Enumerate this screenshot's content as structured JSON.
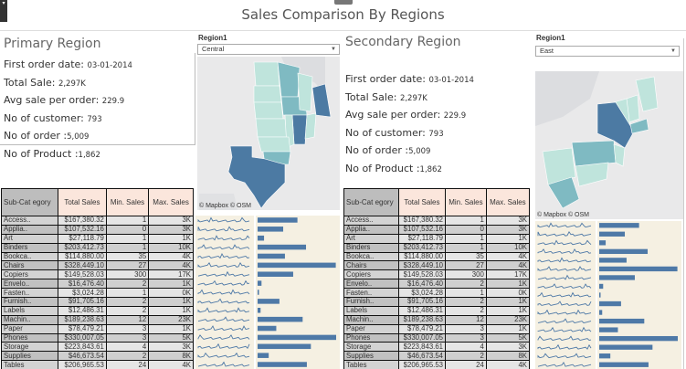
{
  "dashboard": {
    "title": "Sales Comparison By Regions",
    "collapse_glyph": "▾"
  },
  "primary": {
    "heading": "Primary Region",
    "filter_label": "Region1",
    "filter_value": "Central",
    "stats": [
      {
        "label": "First order date: ",
        "value": "03-01-2014"
      },
      {
        "label": "Total Sale: ",
        "value": "2,297K"
      },
      {
        "label": "Avg sale per order: ",
        "value": "229.9"
      },
      {
        "label": "No of customer: ",
        "value": "793"
      },
      {
        "label": "No of order :",
        "value": "5,009"
      },
      {
        "label": "No of Product :",
        "value": "1,862"
      }
    ],
    "map_attribution": "© Mapbox © OSM"
  },
  "secondary": {
    "heading": "Secondary Region",
    "filter_label": "Region1",
    "filter_value": "East",
    "stats": [
      {
        "label": "First order date: ",
        "value": "03-01-2014"
      },
      {
        "label": "Total Sale: ",
        "value": "2,297K"
      },
      {
        "label": "Avg sale per order: ",
        "value": "229.9"
      },
      {
        "label": "No of customer: ",
        "value": "793"
      },
      {
        "label": "No of order :",
        "value": "5,009"
      },
      {
        "label": "No of Product :",
        "value": "1,862"
      }
    ],
    "map_attribution": "© Mapbox © OSM"
  },
  "table": {
    "headers": [
      "Sub-Cat egory",
      "Total Sales",
      "Min. Sales",
      "Max. Sales"
    ],
    "rows": [
      [
        "Access..",
        "$167,380.32",
        "1",
        "3K"
      ],
      [
        "Applia..",
        "$107,532.16",
        "0",
        "3K"
      ],
      [
        "Art",
        "$27,118.79",
        "1",
        "1K"
      ],
      [
        "Binders",
        "$203,412.73",
        "1",
        "10K"
      ],
      [
        "Bookca..",
        "$114,880.00",
        "35",
        "4K"
      ],
      [
        "Chairs",
        "$328,449.10",
        "27",
        "4K"
      ],
      [
        "Copiers",
        "$149,528.03",
        "300",
        "17K"
      ],
      [
        "Envelo..",
        "$16,476.40",
        "2",
        "1K"
      ],
      [
        "Fasten..",
        "$3,024.28",
        "1",
        "0K"
      ],
      [
        "Furnish..",
        "$91,705.16",
        "2",
        "1K"
      ],
      [
        "Labels",
        "$12,486.31",
        "2",
        "1K"
      ],
      [
        "Machin..",
        "$189,238.63",
        "12",
        "23K"
      ],
      [
        "Paper",
        "$78,479.21",
        "3",
        "1K"
      ],
      [
        "Phones",
        "$330,007.05",
        "3",
        "5K"
      ],
      [
        "Storage",
        "$223,843.61",
        "4",
        "3K"
      ],
      [
        "Supplies",
        "$46,673.54",
        "2",
        "8K"
      ],
      [
        "Tables",
        "$206,965.53",
        "24",
        "4K"
      ]
    ],
    "sales_bar_values": [
      167380,
      107532,
      27119,
      203413,
      114880,
      328449,
      149528,
      16476,
      3024,
      91705,
      12486,
      189239,
      78479,
      330007,
      223844,
      46674,
      206966
    ]
  },
  "colors": {
    "bar": "#4e79a7",
    "map_dark": "#4c7aa3",
    "map_mid": "#7fbac2",
    "map_light": "#bfe4dc",
    "panel_bg": "#f5f0e2"
  }
}
